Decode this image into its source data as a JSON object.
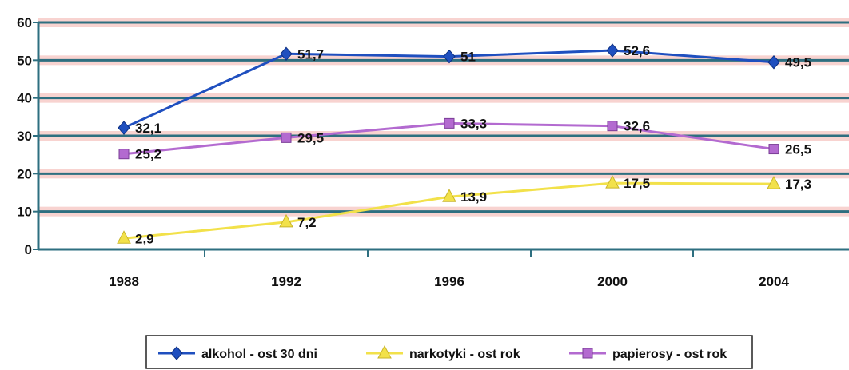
{
  "chart_data": {
    "type": "line",
    "categories": [
      "1988",
      "1992",
      "1996",
      "2000",
      "2004"
    ],
    "ylim": [
      0,
      60
    ],
    "yticks": [
      "0",
      "10",
      "20",
      "30",
      "40",
      "50",
      "60"
    ],
    "grid": "horizontal",
    "legend_position": "bottom",
    "series": [
      {
        "name": "alkohol - ost 30 dni",
        "values": [
          32.1,
          51.7,
          51,
          52.6,
          49.5
        ],
        "labels": [
          "32,1",
          "51,7",
          "51",
          "52,6",
          "49,5"
        ],
        "color": "#1f4fbf",
        "marker": "diamond"
      },
      {
        "name": "narkotyki - ost rok",
        "values": [
          2.9,
          7.2,
          13.9,
          17.5,
          17.3
        ],
        "labels": [
          "2,9",
          "7,2",
          "13,9",
          "17,5",
          "17,3"
        ],
        "color": "#f2e14a",
        "marker": "triangle"
      },
      {
        "name": "papierosy - ost rok",
        "values": [
          25.2,
          29.5,
          33.3,
          32.6,
          26.5
        ],
        "labels": [
          "25,2",
          "29,5",
          "33,3",
          "32,6",
          "26,5"
        ],
        "color": "#b36ad0",
        "marker": "square"
      }
    ]
  }
}
